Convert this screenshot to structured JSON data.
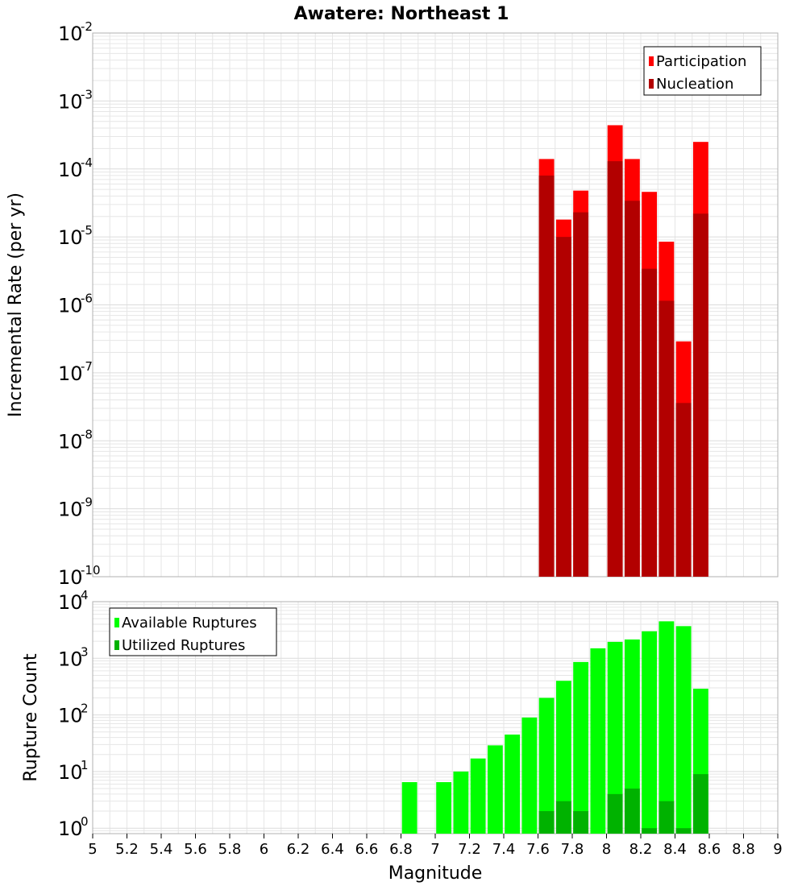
{
  "title": "Awatere: Northeast 1",
  "xlabel": "Magnitude",
  "x_ticks": [
    "5",
    "5.2",
    "5.4",
    "5.6",
    "5.8",
    "6",
    "6.2",
    "6.4",
    "6.6",
    "6.8",
    "7",
    "7.2",
    "7.4",
    "7.6",
    "7.8",
    "8",
    "8.2",
    "8.4",
    "8.6",
    "8.8",
    "9"
  ],
  "colors": {
    "participation": "#ff0000",
    "nucleation": "#b20000",
    "available": "#00ff00",
    "utilized": "#00b200",
    "grid": "#e6e6e6",
    "frame": "#b0b0b0"
  },
  "chart_data": [
    {
      "type": "bar",
      "title": "Awatere: Northeast 1",
      "xlabel": "Magnitude",
      "ylabel": "Incremental Rate (per yr)",
      "xlim": [
        5,
        9
      ],
      "ylim": [
        1e-10,
        0.01
      ],
      "yscale": "log",
      "y_tick_exponents": [
        -10,
        -9,
        -8,
        -7,
        -6,
        -5,
        -4,
        -3,
        -2
      ],
      "grid": true,
      "legend_position": "top-right",
      "bin_width": 0.1,
      "x": [
        7.65,
        7.75,
        7.85,
        8.05,
        8.15,
        8.25,
        8.35,
        8.45,
        8.55
      ],
      "series": [
        {
          "name": "Participation",
          "values": [
            0.00014,
            1.8e-05,
            4.8e-05,
            0.00044,
            0.00014,
            4.6e-05,
            8.5e-06,
            2.9e-07,
            0.00025
          ]
        },
        {
          "name": "Nucleation",
          "values": [
            8e-05,
            1e-05,
            2.3e-05,
            0.00013,
            3.4e-05,
            3.4e-06,
            1.15e-06,
            3.6e-08,
            2.2e-05
          ]
        }
      ]
    },
    {
      "type": "bar",
      "xlabel": "Magnitude",
      "ylabel": "Rupture Count",
      "xlim": [
        5,
        9
      ],
      "ylim": [
        0.8,
        10000
      ],
      "yscale": "log",
      "y_tick_exponents": [
        0,
        1,
        2,
        3,
        4
      ],
      "grid": true,
      "legend_position": "top-left",
      "bin_width": 0.1,
      "series": [
        {
          "name": "Available Ruptures",
          "x": [
            6.85,
            7.05,
            7.15,
            7.25,
            7.35,
            7.45,
            7.55,
            7.65,
            7.75,
            7.85,
            7.95,
            8.05,
            8.15,
            8.25,
            8.35,
            8.45,
            8.55
          ],
          "values": [
            6.5,
            6.5,
            10,
            17,
            29,
            45,
            90,
            200,
            400,
            860,
            1500,
            1950,
            2150,
            3000,
            4500,
            3700,
            290
          ]
        },
        {
          "name": "Utilized Ruptures",
          "x": [
            7.65,
            7.75,
            7.85,
            8.05,
            8.15,
            8.25,
            8.35,
            8.45,
            8.55
          ],
          "values": [
            2,
            3,
            2,
            4,
            5,
            1,
            3,
            1,
            9
          ]
        }
      ]
    }
  ]
}
